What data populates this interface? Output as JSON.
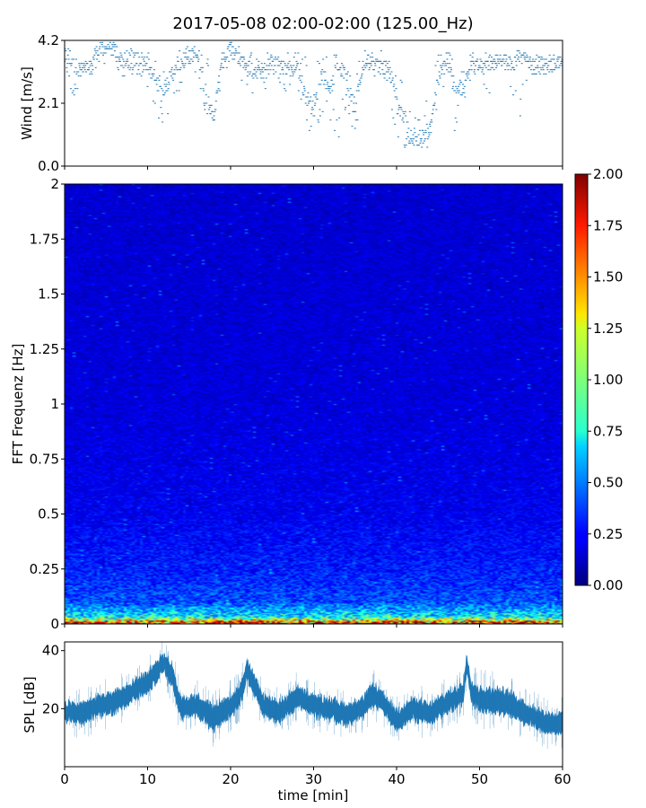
{
  "figure": {
    "title": "2017-05-08 02:00-02:00 (125.00_Hz)"
  },
  "chart_data": [
    {
      "type": "scatter",
      "ylabel": "Wind [m/s]",
      "ylim": [
        0.0,
        4.2
      ],
      "xlim": [
        0,
        60
      ],
      "yticks": [
        "0.0",
        "2.1",
        "4.2"
      ],
      "series_color": "#1f77b4",
      "x_minutes": [
        0,
        1,
        2,
        3,
        4,
        5,
        6,
        7,
        8,
        9,
        10,
        11,
        12,
        13,
        14,
        15,
        16,
        17,
        18,
        19,
        20,
        21,
        22,
        23,
        24,
        25,
        26,
        27,
        28,
        29,
        30,
        31,
        32,
        33,
        34,
        35,
        36,
        37,
        38,
        39,
        40,
        41,
        42,
        43,
        44,
        45,
        46,
        47,
        48,
        49,
        50,
        51,
        52,
        53,
        54,
        55,
        56,
        57,
        58,
        59,
        60
      ],
      "wind_typical": [
        3.7,
        3.4,
        3.2,
        3.3,
        3.9,
        4.0,
        3.9,
        3.5,
        3.5,
        3.6,
        3.4,
        2.8,
        2.6,
        3.1,
        3.4,
        3.6,
        3.7,
        2.4,
        1.6,
        3.6,
        4.0,
        3.6,
        3.4,
        3.1,
        3.2,
        3.5,
        3.3,
        3.2,
        3.3,
        2.4,
        1.9,
        3.1,
        2.6,
        3.3,
        3.0,
        2.0,
        3.4,
        3.6,
        3.3,
        3.3,
        2.3,
        1.5,
        0.8,
        1.0,
        1.2,
        2.9,
        3.6,
        2.7,
        2.5,
        3.4,
        3.5,
        3.3,
        3.5,
        3.5,
        3.4,
        3.6,
        3.5,
        3.4,
        3.3,
        3.4,
        3.4
      ],
      "wind_min": [
        3.4,
        2.1,
        3.0,
        2.9,
        3.2,
        3.5,
        3.6,
        2.6,
        3.0,
        3.1,
        2.5,
        1.0,
        1.4,
        2.2,
        2.6,
        3.0,
        3.2,
        1.5,
        0.8,
        3.2,
        3.4,
        3.0,
        2.5,
        2.3,
        2.5,
        2.8,
        2.6,
        2.4,
        2.5,
        1.3,
        0.9,
        1.5,
        1.5,
        0.6,
        2.1,
        0.9,
        2.9,
        3.1,
        2.8,
        2.6,
        0.9,
        0.6,
        0.5,
        0.6,
        0.6,
        2.0,
        3.0,
        0.3,
        0.9,
        2.9,
        3.1,
        2.4,
        2.7,
        3.2,
        2.2,
        1.5,
        3.1,
        3.0,
        3.0,
        3.2,
        3.3
      ],
      "wind_max": [
        4.2,
        3.7,
        3.6,
        3.7,
        4.2,
        4.2,
        4.2,
        4.0,
        4.0,
        4.0,
        3.9,
        3.5,
        3.7,
        3.8,
        3.9,
        4.0,
        4.0,
        3.9,
        3.5,
        4.0,
        4.2,
        4.1,
        3.9,
        3.7,
        3.8,
        3.9,
        3.8,
        3.8,
        3.9,
        3.9,
        3.5,
        3.7,
        3.8,
        3.9,
        3.7,
        3.6,
        3.9,
        4.0,
        3.9,
        3.9,
        3.7,
        2.5,
        1.6,
        2.2,
        2.5,
        3.8,
        3.9,
        3.7,
        3.5,
        3.9,
        4.0,
        3.8,
        3.8,
        3.8,
        3.8,
        3.9,
        3.9,
        3.7,
        3.7,
        3.7,
        3.7
      ]
    },
    {
      "type": "heatmap",
      "ylabel": "FFT Frequenz [Hz]",
      "ylim": [
        0,
        2
      ],
      "xlim": [
        0,
        60
      ],
      "yticks": [
        "0",
        "0.25",
        "0.5",
        "0.75",
        "1",
        "1.25",
        "1.5",
        "1.75",
        "2"
      ],
      "colormap": "jet",
      "colorbar": {
        "range": [
          0.0,
          2.0
        ],
        "ticks": [
          "0.00",
          "0.25",
          "0.50",
          "0.75",
          "1.00",
          "1.25",
          "1.50",
          "1.75",
          "2.00"
        ]
      },
      "typical_level_by_frequency_hz": [
        [
          0.0,
          1.9
        ],
        [
          0.03,
          0.75
        ],
        [
          0.1,
          0.4
        ],
        [
          0.25,
          0.3
        ],
        [
          0.5,
          0.22
        ],
        [
          1.0,
          0.18
        ],
        [
          2.0,
          0.16
        ]
      ]
    },
    {
      "type": "line",
      "ylabel": "SPL [dB]",
      "xlabel": "time [min]",
      "xlim": [
        0,
        60
      ],
      "ylim": [
        0,
        43
      ],
      "yticks": [
        "20",
        "40"
      ],
      "xticks": [
        "0",
        "10",
        "20",
        "30",
        "40",
        "50",
        "60"
      ],
      "series_color": "#1f77b4",
      "x_minutes": [
        0,
        2,
        4,
        6,
        8,
        10,
        11,
        12,
        13,
        14,
        16,
        18,
        20,
        21,
        22,
        24,
        26,
        28,
        30,
        32,
        34,
        36,
        37,
        38,
        40,
        42,
        44,
        46,
        48,
        48.5,
        49,
        50,
        52,
        54,
        56,
        58,
        60
      ],
      "spl_db": [
        19,
        18,
        21,
        22,
        26,
        29,
        33,
        36,
        31,
        20,
        21,
        17,
        21,
        24,
        33,
        21,
        19,
        24,
        21,
        20,
        18,
        20,
        25,
        23,
        16,
        20,
        18,
        22,
        25,
        36,
        26,
        23,
        23,
        21,
        18,
        15,
        15
      ],
      "spl_spread_db": [
        5,
        6,
        6,
        6,
        6,
        6,
        6,
        5,
        7,
        6,
        6,
        7,
        6,
        6,
        6,
        6,
        6,
        6,
        6,
        6,
        6,
        6,
        6,
        6,
        6,
        6,
        6,
        6,
        6,
        6,
        6,
        7,
        7,
        7,
        6,
        6,
        6
      ]
    }
  ]
}
